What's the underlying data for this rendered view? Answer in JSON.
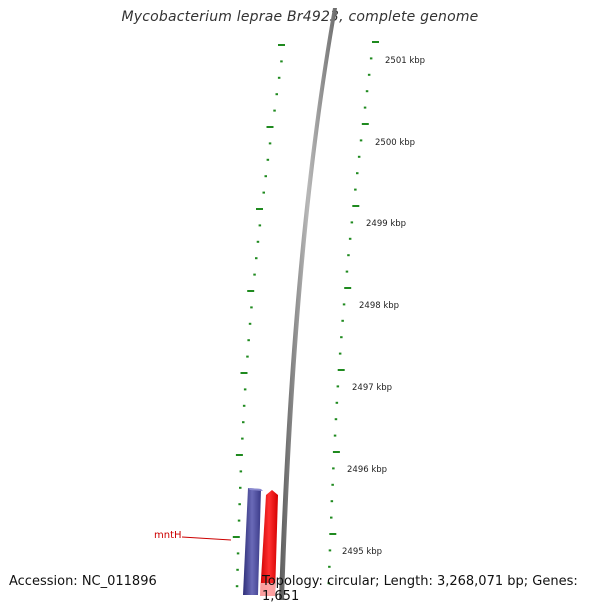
{
  "title": "Mycobacterium leprae Br4923, complete genome",
  "accession": "Accession: NC_011896",
  "summary": "Topology: circular; Length: 3,268,071 bp; Genes: 1,651",
  "colors": {
    "tick": "#1f8a1f",
    "backbone": "#8a8a8a",
    "gene_forward": "#ff1a1a",
    "gene_reverse": "#4a4a9a",
    "gene_label": "#cc0000"
  },
  "ticks": [
    {
      "label": "2501 kbp",
      "kbp": 2501
    },
    {
      "label": "2500 kbp",
      "kbp": 2500
    },
    {
      "label": "2499 kbp",
      "kbp": 2499
    },
    {
      "label": "2498 kbp",
      "kbp": 2498
    },
    {
      "label": "2497 kbp",
      "kbp": 2497
    },
    {
      "label": "2496 kbp",
      "kbp": 2496
    },
    {
      "label": "2495 kbp",
      "kbp": 2495
    }
  ],
  "genes": [
    {
      "name": "mntH",
      "strand": "forward"
    },
    {
      "name": "",
      "strand": "reverse"
    }
  ]
}
